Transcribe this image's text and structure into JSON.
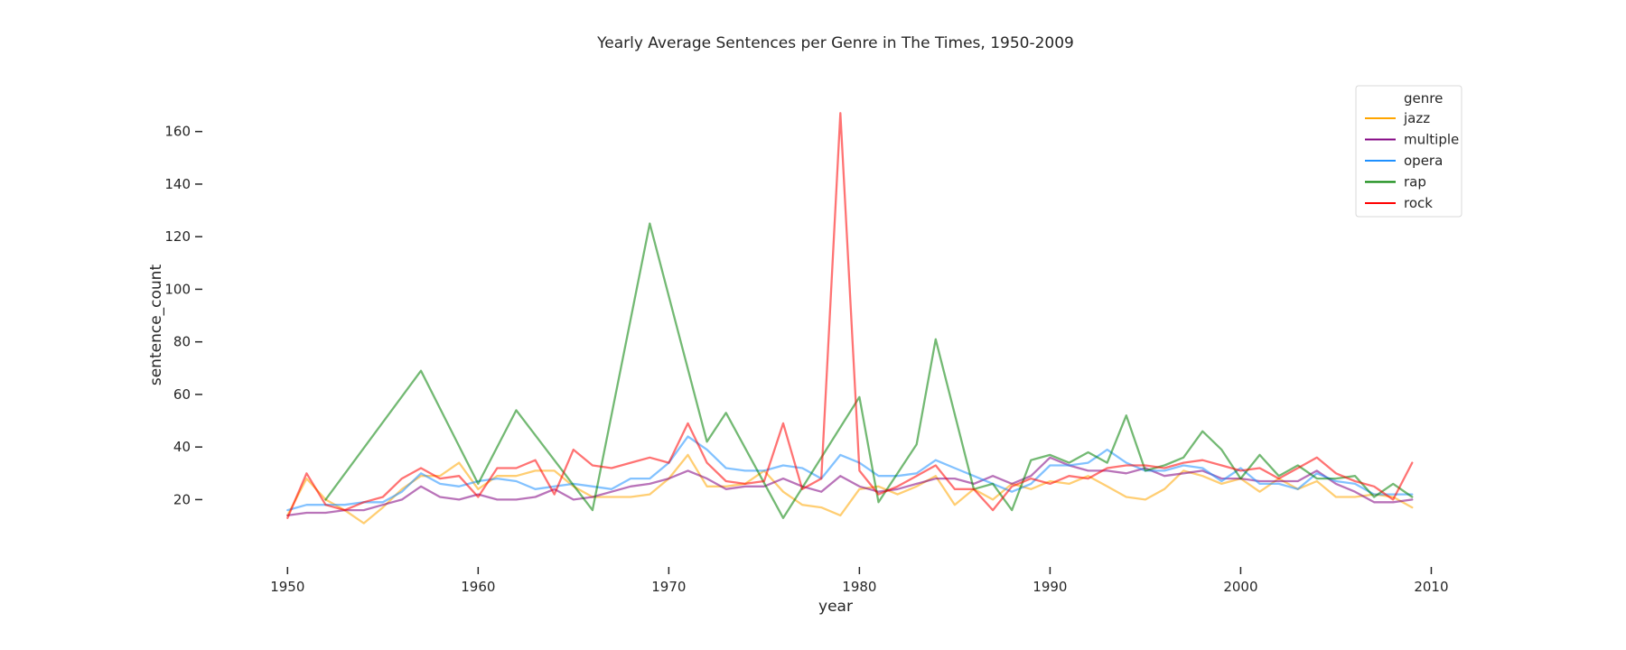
{
  "chart_data": {
    "type": "line",
    "title": "Yearly Average Sentences per Genre in The Times, 1950-2009",
    "xlabel": "year",
    "ylabel": "sentence_count",
    "xlim": [
      1947,
      2010.5
    ],
    "ylim": [
      4,
      175
    ],
    "xticks": [
      1950,
      1960,
      1970,
      1980,
      1990,
      2000,
      2010
    ],
    "yticks": [
      20,
      40,
      60,
      80,
      100,
      120,
      140,
      160
    ],
    "grid": false,
    "legend": {
      "title": "genre",
      "placement": "top-right"
    },
    "series": [
      {
        "name": "jazz",
        "color": "#FFA500",
        "points": [
          [
            1950,
            14
          ],
          [
            1951,
            28
          ],
          [
            1952,
            20
          ],
          [
            1953,
            16
          ],
          [
            1954,
            11
          ],
          [
            1955,
            17
          ],
          [
            1956,
            24
          ],
          [
            1957,
            29
          ],
          [
            1958,
            29
          ],
          [
            1959,
            34
          ],
          [
            1960,
            24
          ],
          [
            1961,
            29
          ],
          [
            1962,
            29
          ],
          [
            1963,
            31
          ],
          [
            1964,
            31
          ],
          [
            1965,
            25
          ],
          [
            1966,
            21
          ],
          [
            1967,
            21
          ],
          [
            1968,
            21
          ],
          [
            1969,
            22
          ],
          [
            1970,
            28
          ],
          [
            1971,
            37
          ],
          [
            1972,
            25
          ],
          [
            1973,
            25
          ],
          [
            1974,
            26
          ],
          [
            1975,
            31
          ],
          [
            1976,
            23
          ],
          [
            1977,
            18
          ],
          [
            1978,
            17
          ],
          [
            1979,
            14
          ],
          [
            1980,
            24
          ],
          [
            1981,
            25
          ],
          [
            1982,
            22
          ],
          [
            1983,
            25
          ],
          [
            1984,
            29
          ],
          [
            1985,
            18
          ],
          [
            1986,
            24
          ],
          [
            1987,
            20
          ],
          [
            1988,
            26
          ],
          [
            1989,
            24
          ],
          [
            1990,
            27
          ],
          [
            1991,
            26
          ],
          [
            1992,
            29
          ],
          [
            1993,
            25
          ],
          [
            1994,
            21
          ],
          [
            1995,
            20
          ],
          [
            1996,
            24
          ],
          [
            1997,
            31
          ],
          [
            1998,
            29
          ],
          [
            1999,
            26
          ],
          [
            2000,
            28
          ],
          [
            2001,
            23
          ],
          [
            2002,
            28
          ],
          [
            2003,
            24
          ],
          [
            2004,
            27
          ],
          [
            2005,
            21
          ],
          [
            2006,
            21
          ],
          [
            2007,
            22
          ],
          [
            2008,
            21
          ],
          [
            2009,
            17
          ]
        ]
      },
      {
        "name": "multiple",
        "color": "#800080",
        "points": [
          [
            1950,
            14
          ],
          [
            1951,
            15
          ],
          [
            1952,
            15
          ],
          [
            1953,
            16
          ],
          [
            1954,
            16
          ],
          [
            1955,
            18
          ],
          [
            1956,
            20
          ],
          [
            1957,
            25
          ],
          [
            1958,
            21
          ],
          [
            1959,
            20
          ],
          [
            1960,
            22
          ],
          [
            1961,
            20
          ],
          [
            1962,
            20
          ],
          [
            1963,
            21
          ],
          [
            1964,
            24
          ],
          [
            1965,
            20
          ],
          [
            1966,
            21
          ],
          [
            1967,
            23
          ],
          [
            1968,
            25
          ],
          [
            1969,
            26
          ],
          [
            1970,
            28
          ],
          [
            1971,
            31
          ],
          [
            1972,
            28
          ],
          [
            1973,
            24
          ],
          [
            1974,
            25
          ],
          [
            1975,
            25
          ],
          [
            1976,
            28
          ],
          [
            1977,
            25
          ],
          [
            1978,
            23
          ],
          [
            1979,
            29
          ],
          [
            1980,
            25
          ],
          [
            1981,
            23
          ],
          [
            1982,
            24
          ],
          [
            1983,
            26
          ],
          [
            1984,
            28
          ],
          [
            1985,
            28
          ],
          [
            1986,
            26
          ],
          [
            1987,
            29
          ],
          [
            1988,
            26
          ],
          [
            1989,
            29
          ],
          [
            1990,
            36
          ],
          [
            1991,
            33
          ],
          [
            1992,
            31
          ],
          [
            1993,
            31
          ],
          [
            1994,
            30
          ],
          [
            1995,
            32
          ],
          [
            1996,
            29
          ],
          [
            1997,
            30
          ],
          [
            1998,
            31
          ],
          [
            1999,
            28
          ],
          [
            2000,
            28
          ],
          [
            2001,
            27
          ],
          [
            2002,
            27
          ],
          [
            2003,
            27
          ],
          [
            2004,
            31
          ],
          [
            2005,
            26
          ],
          [
            2006,
            23
          ],
          [
            2007,
            19
          ],
          [
            2008,
            19
          ],
          [
            2009,
            20
          ]
        ]
      },
      {
        "name": "opera",
        "color": "#1E90FF",
        "points": [
          [
            1950,
            16
          ],
          [
            1951,
            18
          ],
          [
            1952,
            18
          ],
          [
            1953,
            18
          ],
          [
            1954,
            19
          ],
          [
            1955,
            19
          ],
          [
            1956,
            23
          ],
          [
            1957,
            30
          ],
          [
            1958,
            26
          ],
          [
            1959,
            25
          ],
          [
            1960,
            27
          ],
          [
            1961,
            28
          ],
          [
            1962,
            27
          ],
          [
            1963,
            24
          ],
          [
            1964,
            25
          ],
          [
            1965,
            26
          ],
          [
            1966,
            25
          ],
          [
            1967,
            24
          ],
          [
            1968,
            28
          ],
          [
            1969,
            28
          ],
          [
            1970,
            34
          ],
          [
            1971,
            44
          ],
          [
            1972,
            39
          ],
          [
            1973,
            32
          ],
          [
            1974,
            31
          ],
          [
            1975,
            31
          ],
          [
            1976,
            33
          ],
          [
            1977,
            32
          ],
          [
            1978,
            28
          ],
          [
            1979,
            37
          ],
          [
            1980,
            34
          ],
          [
            1981,
            29
          ],
          [
            1982,
            29
          ],
          [
            1983,
            30
          ],
          [
            1984,
            35
          ],
          [
            1985,
            32
          ],
          [
            1986,
            29
          ],
          [
            1987,
            26
          ],
          [
            1988,
            23
          ],
          [
            1989,
            26
          ],
          [
            1990,
            33
          ],
          [
            1991,
            33
          ],
          [
            1992,
            34
          ],
          [
            1993,
            39
          ],
          [
            1994,
            34
          ],
          [
            1995,
            31
          ],
          [
            1996,
            31
          ],
          [
            1997,
            33
          ],
          [
            1998,
            32
          ],
          [
            1999,
            27
          ],
          [
            2000,
            32
          ],
          [
            2001,
            26
          ],
          [
            2002,
            26
          ],
          [
            2003,
            24
          ],
          [
            2004,
            30
          ],
          [
            2005,
            27
          ],
          [
            2006,
            26
          ],
          [
            2007,
            22
          ],
          [
            2008,
            22
          ],
          [
            2009,
            22
          ]
        ]
      },
      {
        "name": "rap",
        "color": "#008000",
        "points": [
          [
            1952,
            20
          ],
          [
            1957,
            69
          ],
          [
            1960,
            26
          ],
          [
            1962,
            54
          ],
          [
            1966,
            16
          ],
          [
            1969,
            125
          ],
          [
            1972,
            42
          ],
          [
            1973,
            53
          ],
          [
            1976,
            13
          ],
          [
            1980,
            59
          ],
          [
            1981,
            19
          ],
          [
            1983,
            41
          ],
          [
            1984,
            81
          ],
          [
            1986,
            24
          ],
          [
            1987,
            26
          ],
          [
            1988,
            16
          ],
          [
            1989,
            35
          ],
          [
            1990,
            37
          ],
          [
            1991,
            34
          ],
          [
            1992,
            38
          ],
          [
            1993,
            34
          ],
          [
            1994,
            52
          ],
          [
            1995,
            31
          ],
          [
            1996,
            33
          ],
          [
            1997,
            36
          ],
          [
            1998,
            46
          ],
          [
            1999,
            39
          ],
          [
            2000,
            28
          ],
          [
            2001,
            37
          ],
          [
            2002,
            29
          ],
          [
            2003,
            33
          ],
          [
            2004,
            28
          ],
          [
            2005,
            28
          ],
          [
            2006,
            29
          ],
          [
            2007,
            21
          ],
          [
            2008,
            26
          ],
          [
            2009,
            21
          ]
        ]
      },
      {
        "name": "rock",
        "color": "#FF0000",
        "points": [
          [
            1950,
            13
          ],
          [
            1951,
            30
          ],
          [
            1952,
            18
          ],
          [
            1953,
            16
          ],
          [
            1954,
            19
          ],
          [
            1955,
            21
          ],
          [
            1956,
            28
          ],
          [
            1957,
            32
          ],
          [
            1958,
            28
          ],
          [
            1959,
            29
          ],
          [
            1960,
            21
          ],
          [
            1961,
            32
          ],
          [
            1962,
            32
          ],
          [
            1963,
            35
          ],
          [
            1964,
            22
          ],
          [
            1965,
            39
          ],
          [
            1966,
            33
          ],
          [
            1967,
            32
          ],
          [
            1968,
            34
          ],
          [
            1969,
            36
          ],
          [
            1970,
            34
          ],
          [
            1971,
            49
          ],
          [
            1972,
            34
          ],
          [
            1973,
            27
          ],
          [
            1974,
            26
          ],
          [
            1975,
            27
          ],
          [
            1976,
            49
          ],
          [
            1977,
            24
          ],
          [
            1978,
            28
          ],
          [
            1979,
            167
          ],
          [
            1980,
            31
          ],
          [
            1981,
            22
          ],
          [
            1982,
            25
          ],
          [
            1983,
            29
          ],
          [
            1984,
            33
          ],
          [
            1985,
            24
          ],
          [
            1986,
            24
          ],
          [
            1987,
            16
          ],
          [
            1988,
            25
          ],
          [
            1989,
            28
          ],
          [
            1990,
            26
          ],
          [
            1991,
            29
          ],
          [
            1992,
            28
          ],
          [
            1993,
            32
          ],
          [
            1994,
            33
          ],
          [
            1995,
            33
          ],
          [
            1996,
            32
          ],
          [
            1997,
            34
          ],
          [
            1998,
            35
          ],
          [
            1999,
            33
          ],
          [
            2000,
            31
          ],
          [
            2001,
            32
          ],
          [
            2002,
            28
          ],
          [
            2003,
            32
          ],
          [
            2004,
            36
          ],
          [
            2005,
            30
          ],
          [
            2006,
            27
          ],
          [
            2007,
            25
          ],
          [
            2008,
            20
          ],
          [
            2009,
            34
          ]
        ]
      }
    ]
  }
}
